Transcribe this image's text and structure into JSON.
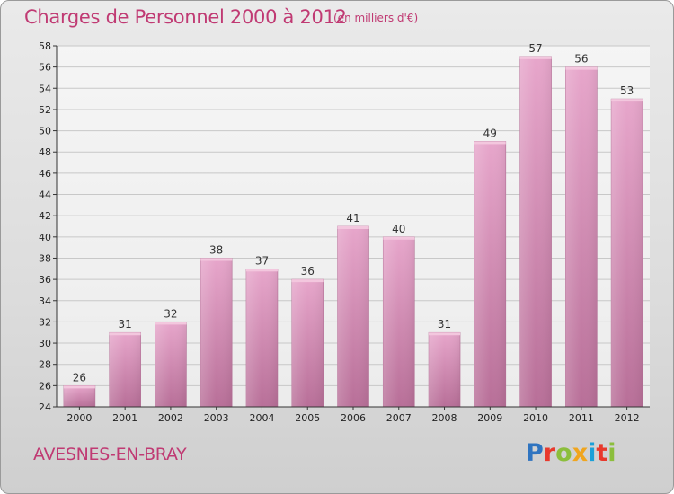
{
  "header": {
    "title": "Charges de Personnel 2000 à 2012",
    "subtitle": "(en milliers d'€)"
  },
  "footer": {
    "city": "AVESNES-EN-BRAY",
    "brand": "Proxiti",
    "brand_colors": [
      "#2f74c0",
      "#e8392c",
      "#8cbe3c",
      "#f0a51e",
      "#1aa0d8",
      "#e8392c",
      "#8cbe3c"
    ]
  },
  "chart_data": {
    "type": "bar",
    "categories": [
      "2000",
      "2001",
      "2002",
      "2003",
      "2004",
      "2005",
      "2006",
      "2007",
      "2008",
      "2009",
      "2010",
      "2011",
      "2012"
    ],
    "values": [
      26,
      31,
      32,
      38,
      37,
      36,
      41,
      40,
      31,
      49,
      57,
      56,
      53
    ],
    "ylim": [
      24,
      58
    ],
    "yticks": [
      24,
      26,
      28,
      30,
      32,
      34,
      36,
      38,
      40,
      42,
      44,
      46,
      48,
      50,
      52,
      54,
      56,
      58
    ],
    "grid": true,
    "bar_color": "#d98fb5"
  }
}
